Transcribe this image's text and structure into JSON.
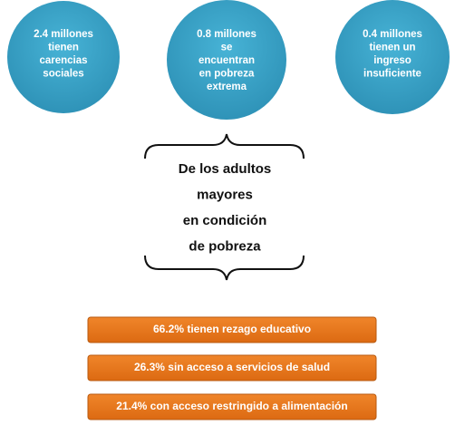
{
  "circles": [
    {
      "lines": [
        "2.4 millones",
        "tienen",
        "carencias",
        "sociales"
      ]
    },
    {
      "lines": [
        "0.8 millones",
        "se",
        "encuentran",
        "en pobreza",
        "extrema"
      ]
    },
    {
      "lines": [
        "0.4 millones",
        "tienen un",
        "ingreso",
        "insuficiente"
      ]
    }
  ],
  "center": {
    "lines": [
      "De los adultos",
      "mayores",
      "en condición",
      "de pobreza"
    ]
  },
  "bars": [
    "66.2% tienen rezago educativo",
    "26.3% sin acceso a servicios de salud",
    "21.4% con acceso restringido a alimentación"
  ]
}
